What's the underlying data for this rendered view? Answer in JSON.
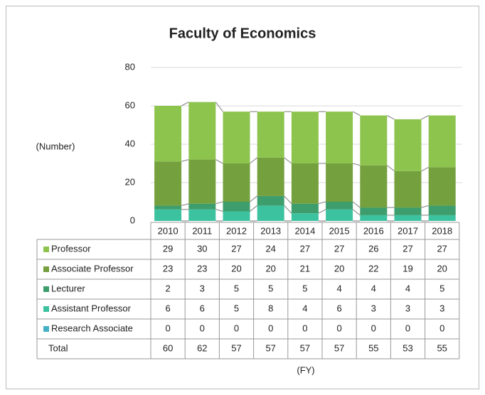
{
  "chart_data": {
    "type": "bar",
    "stacked": true,
    "title": "Faculty of Economics",
    "ylabel": "(Number)",
    "xlabel": "(FY)",
    "categories": [
      "2010",
      "2011",
      "2012",
      "2013",
      "2014",
      "2015",
      "2016",
      "2017",
      "2018"
    ],
    "series": [
      {
        "name": "Professor",
        "color": "#8dc44e",
        "values": [
          29,
          30,
          27,
          24,
          27,
          27,
          26,
          27,
          27
        ]
      },
      {
        "name": "Associate Professor",
        "color": "#75a03e",
        "values": [
          23,
          23,
          20,
          20,
          21,
          20,
          22,
          19,
          20
        ]
      },
      {
        "name": "Lecturer",
        "color": "#3d9d6c",
        "values": [
          2,
          3,
          5,
          5,
          5,
          4,
          4,
          4,
          5
        ]
      },
      {
        "name": "Assistant Professor",
        "color": "#3dc2a0",
        "values": [
          6,
          6,
          5,
          8,
          4,
          6,
          3,
          3,
          3
        ]
      },
      {
        "name": "Research Associate",
        "color": "#45b0c4",
        "values": [
          0,
          0,
          0,
          0,
          0,
          0,
          0,
          0,
          0
        ]
      }
    ],
    "total_label": "Total",
    "totals": [
      60,
      62,
      57,
      57,
      57,
      57,
      55,
      53,
      55
    ],
    "ylim": [
      0,
      80
    ],
    "yticks": [
      0,
      20,
      40,
      60,
      80
    ],
    "grid": true
  }
}
